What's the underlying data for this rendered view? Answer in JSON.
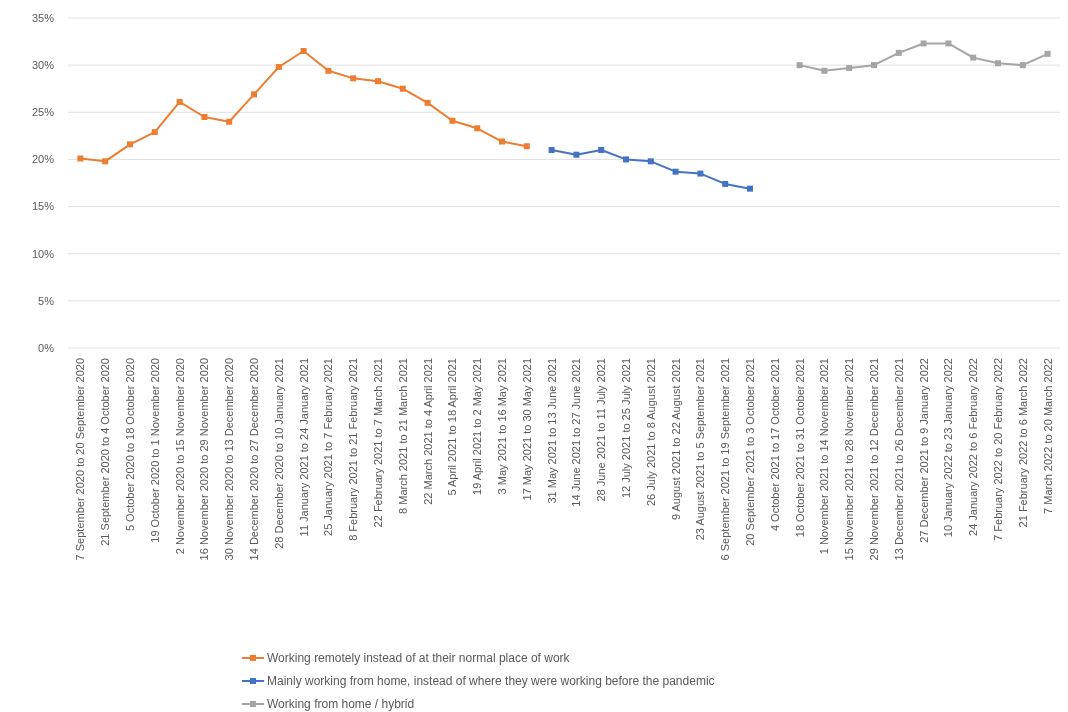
{
  "chart_data": {
    "type": "line",
    "categories": [
      "7 September 2020 to 20 September 2020",
      "21 September 2020 to 4 October 2020",
      "5 October 2020 to 18 October 2020",
      "19 October 2020 to 1 November 2020",
      "2 November 2020 to 15 November 2020",
      "16 November 2020 to 29 November 2020",
      "30 November 2020 to 13 December 2020",
      "14 December 2020 to 27 December 2020",
      "28 December 2020 to 10 January 2021",
      "11 January 2021 to 24 January 2021",
      "25 January 2021 to 7 February 2021",
      "8 February 2021 to 21 February 2021",
      "22 February 2021 to 7 March 2021",
      "8 March 2021 to 21 March 2021",
      "22 March 2021 to 4 April 2021",
      "5 April 2021 to 18 April 2021",
      "19 April 2021 to 2 May 2021",
      "3 May 2021 to 16 May 2021",
      "17 May 2021 to 30 May 2021",
      "31 May 2021 to 13 June 2021",
      "14 June 2021 to 27 June 2021",
      "28 June 2021 to 11 July 2021",
      "12 July 2021 to 25 July 2021",
      "26 July 2021 to 8 August 2021",
      "9 August 2021 to 22 August 2021",
      "23 August 2021 to 5 September 2021",
      "6 September 2021 to 19 September 2021",
      "20 September 2021 to 3 October 2021",
      "4 October 2021 to 17 October 2021",
      "18 October 2021 to 31 October 2021",
      "1 November 2021 to 14 November 2021",
      "15 November 2021 to 28 November 2021",
      "29 November 2021 to 12 December 2021",
      "13 December 2021 to 26 December 2021",
      "27 December 2021 to 9 January 2022",
      "10 January 2022 to 23 January 2022",
      "24 January 2022 to 6 February 2022",
      "7 February 2022 to 20 February 2022",
      "21 February 2022 to 6 March 2022",
      "7 March 2022 to 20 March 2022"
    ],
    "series": [
      {
        "name": "Working remotely instead of at their normal place of work",
        "color": "#ed7d31",
        "values": [
          20.1,
          19.8,
          21.6,
          22.9,
          26.1,
          24.5,
          24.0,
          26.9,
          29.8,
          31.5,
          29.4,
          28.6,
          28.3,
          27.5,
          26.0,
          24.1,
          23.3,
          21.9,
          21.4,
          null,
          null,
          null,
          null,
          null,
          null,
          null,
          null,
          null,
          null,
          null,
          null,
          null,
          null,
          null,
          null,
          null,
          null,
          null,
          null,
          null
        ]
      },
      {
        "name": "Mainly working from home, instead of where they were working before the pandemic",
        "color": "#4472c4",
        "values": [
          null,
          null,
          null,
          null,
          null,
          null,
          null,
          null,
          null,
          null,
          null,
          null,
          null,
          null,
          null,
          null,
          null,
          null,
          null,
          21.0,
          20.5,
          21.0,
          20.0,
          19.8,
          18.7,
          18.5,
          17.4,
          16.9,
          null,
          null,
          null,
          null,
          null,
          null,
          null,
          null,
          null,
          null,
          null,
          null
        ]
      },
      {
        "name": "Working from home / hybrid",
        "color": "#a5a5a5",
        "values": [
          null,
          null,
          null,
          null,
          null,
          null,
          null,
          null,
          null,
          null,
          null,
          null,
          null,
          null,
          null,
          null,
          null,
          null,
          null,
          null,
          null,
          null,
          null,
          null,
          null,
          null,
          null,
          null,
          null,
          30.0,
          29.4,
          29.7,
          30.0,
          31.3,
          32.3,
          32.3,
          30.8,
          30.2,
          30.0,
          31.2
        ]
      }
    ],
    "ylim": [
      0,
      35
    ],
    "yticks": [
      {
        "value": 0,
        "label": "0%"
      },
      {
        "value": 5,
        "label": "5%"
      },
      {
        "value": 10,
        "label": "10%"
      },
      {
        "value": 15,
        "label": "15%"
      },
      {
        "value": 20,
        "label": "20%"
      },
      {
        "value": 25,
        "label": "25%"
      },
      {
        "value": 30,
        "label": "30%"
      },
      {
        "value": 35,
        "label": "35%"
      }
    ],
    "grid": "y",
    "legend": "bottom",
    "marker": "square",
    "line_style": "solid"
  }
}
